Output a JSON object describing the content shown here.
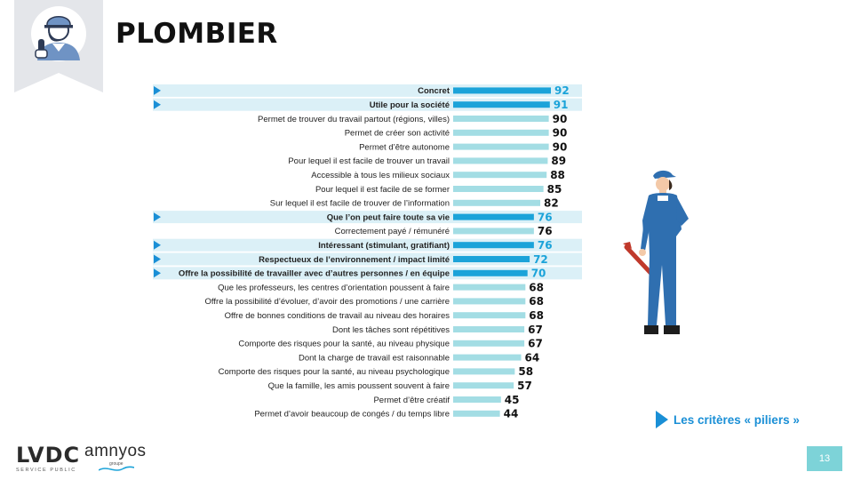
{
  "title": "PLOMBIER",
  "legend": {
    "pillar_label": "Les critères « piliers »"
  },
  "colors": {
    "bar": "#a3dde4",
    "pillar_bar": "#1ba3d9",
    "pillar_band": "#dbf0f7",
    "pillar_value": "#1ba3d9",
    "marker": "#1a8fd6"
  },
  "logos": {
    "lvdc": "LVDC",
    "lvdc_sub": "SERVICE PUBLIC",
    "amnyos": "amnyos",
    "amnyos_sub": "groupe"
  },
  "page_number": "13",
  "chart_data": {
    "type": "bar",
    "orientation": "horizontal",
    "xlim": [
      0,
      100
    ],
    "categories": [
      "Concret",
      "Utile pour la société",
      "Permet de trouver du travail partout (régions,  villes)",
      "Permet de créer son activité",
      "Permet d’être autonome",
      "Pour lequel il est facile de trouver un travail",
      "Accessible à tous les milieux sociaux",
      "Pour lequel il est facile de se former",
      "Sur lequel il est facile de trouver de l’information",
      "Que l’on peut faire toute sa vie",
      "Correctement payé / rémunéré",
      "Intéressant (stimulant, gratifiant)",
      "Respectueux de l’environnement / impact limité",
      "Offre la possibilité de travailler avec d’autres personnes / en équipe",
      "Que les professeurs, les centres d’orientation poussent à faire",
      "Offre la possibilité d’évoluer, d’avoir des promotions / une carrière",
      "Offre de bonnes conditions de travail au niveau des horaires",
      "Dont les tâches sont répétitives",
      "Comporte des risques pour la santé, au niveau physique",
      "Dont la charge de travail est raisonnable",
      "Comporte des risques pour la santé, au niveau psychologique",
      "Que la famille, les amis poussent souvent à faire",
      "Permet d’être créatif",
      "Permet d’avoir beaucoup de congés / du temps libre"
    ],
    "values": [
      92,
      91,
      90,
      90,
      90,
      89,
      88,
      85,
      82,
      76,
      76,
      76,
      72,
      70,
      68,
      68,
      68,
      67,
      67,
      64,
      58,
      57,
      45,
      44
    ],
    "pillars": [
      true,
      true,
      false,
      false,
      false,
      false,
      false,
      false,
      false,
      true,
      false,
      true,
      true,
      true,
      false,
      false,
      false,
      false,
      false,
      false,
      false,
      false,
      false,
      false
    ]
  }
}
